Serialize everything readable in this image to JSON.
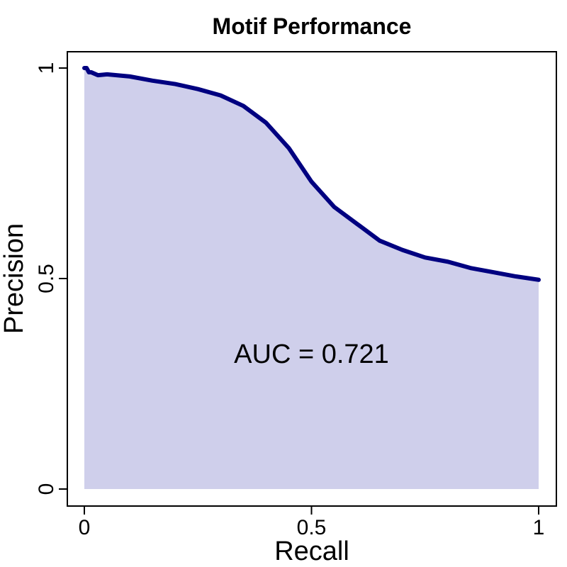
{
  "chart_data": {
    "type": "area",
    "title": "Motif Performance",
    "xlabel": "Recall",
    "ylabel": "Precision",
    "xlim": [
      0,
      1
    ],
    "ylim": [
      0,
      1
    ],
    "x_ticks": [
      {
        "value": 0,
        "label": "0"
      },
      {
        "value": 0.5,
        "label": "0.5"
      },
      {
        "value": 1,
        "label": "1"
      }
    ],
    "y_ticks": [
      {
        "value": 0,
        "label": "0"
      },
      {
        "value": 0.5,
        "label": "0.5"
      },
      {
        "value": 1,
        "label": "1"
      }
    ],
    "grid": false,
    "annotation": {
      "text": "AUC = 0.721",
      "x": 0.5,
      "y": 0.3
    },
    "line_color": "#000080",
    "fill_color": "#cfcfeb",
    "series": [
      {
        "x": [
          0,
          0.005,
          0.01,
          0.015,
          0.03,
          0.05,
          0.1,
          0.15,
          0.2,
          0.25,
          0.3,
          0.35,
          0.4,
          0.45,
          0.5,
          0.55,
          0.6,
          0.65,
          0.7,
          0.75,
          0.8,
          0.85,
          0.9,
          0.95,
          1.0
        ],
        "y": [
          1.0,
          1.0,
          0.99,
          0.99,
          0.983,
          0.985,
          0.98,
          0.97,
          0.962,
          0.95,
          0.935,
          0.91,
          0.87,
          0.81,
          0.73,
          0.67,
          0.63,
          0.59,
          0.568,
          0.55,
          0.54,
          0.525,
          0.515,
          0.505,
          0.497
        ]
      }
    ]
  }
}
